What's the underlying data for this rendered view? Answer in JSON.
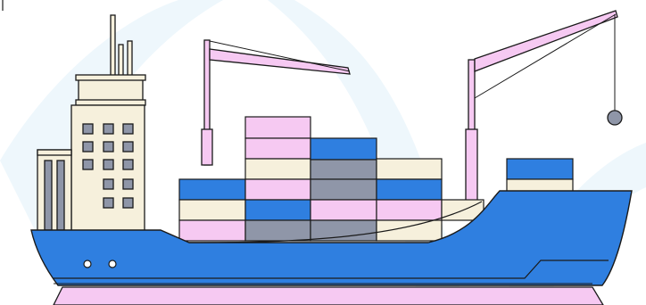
{
  "scene": {
    "subject": "container-ship",
    "colors": {
      "outline": "#1a1a1a",
      "hull": "#2f7fe0",
      "waterline": "#f6c9f2",
      "container_blue": "#2f7fe0",
      "container_pink": "#f6c9f2",
      "container_cream": "#f6f0dc",
      "container_gray": "#8f96a8",
      "superstructure": "#f6f0dc",
      "crane": "#f6c9f2",
      "hook": "#8f96a8",
      "background_swoosh": "#eef7fc"
    },
    "container_rows": [
      [
        "blue",
        "blue",
        "gray",
        "blue"
      ],
      [
        "cream",
        "blue",
        "gray",
        "pink",
        "pink"
      ],
      [
        "pink",
        "gray",
        "gray",
        "cream",
        "cream"
      ]
    ]
  }
}
